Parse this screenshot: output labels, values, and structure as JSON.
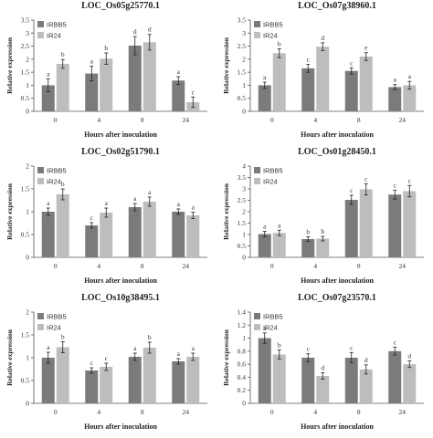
{
  "chart_data": [
    {
      "type": "bar",
      "title": "LOC_Os05g25770.1",
      "xlabel": "Hours after inoculation",
      "ylabel": "Relative expression",
      "categories": [
        "0",
        "4",
        "8",
        "24"
      ],
      "ylim": [
        0,
        3.5
      ],
      "yticks": [
        "0",
        "0.5",
        "1",
        "1.5",
        "2",
        "2.5",
        "3",
        "3.5"
      ],
      "legend_position": "top-left",
      "series": [
        {
          "name": "IRBB5",
          "color": "#7b7b7b",
          "values": [
            1.0,
            1.45,
            2.52,
            1.18
          ],
          "errors": [
            0.25,
            0.28,
            0.35,
            0.15
          ],
          "labels": [
            "a",
            "a",
            "d",
            "a"
          ]
        },
        {
          "name": "IR24",
          "color": "#bdbdbd",
          "values": [
            1.82,
            2.02,
            2.65,
            0.35
          ],
          "errors": [
            0.17,
            0.22,
            0.3,
            0.2
          ],
          "labels": [
            "b",
            "b",
            "d",
            "c"
          ]
        }
      ]
    },
    {
      "type": "bar",
      "title": "LOC_Os07g38960.1",
      "xlabel": "Hours after inoculation",
      "ylabel": "Relative expression",
      "categories": [
        "0",
        "4",
        "8",
        "24"
      ],
      "ylim": [
        0,
        3.5
      ],
      "yticks": [
        "0",
        "0.5",
        "1",
        "1.5",
        "2",
        "2.5",
        "3",
        "3.5"
      ],
      "legend_position": "top-left",
      "series": [
        {
          "name": "IRBB5",
          "color": "#7b7b7b",
          "values": [
            1.0,
            1.65,
            1.55,
            0.93
          ],
          "errors": [
            0.12,
            0.15,
            0.12,
            0.1
          ],
          "labels": [
            "a",
            "c",
            "c",
            "a"
          ]
        },
        {
          "name": "IR24",
          "color": "#bdbdbd",
          "values": [
            2.23,
            2.48,
            2.1,
            1.0
          ],
          "errors": [
            0.17,
            0.15,
            0.15,
            0.15
          ],
          "labels": [
            "b",
            "d",
            "e",
            "a"
          ]
        }
      ]
    },
    {
      "type": "bar",
      "title": "LOC_Os02g51790.1",
      "xlabel": "Hours after inoculation",
      "ylabel": "Relative expression",
      "categories": [
        "0",
        "4",
        "8",
        "24"
      ],
      "ylim": [
        0,
        2
      ],
      "yticks": [
        "0",
        "0.5",
        "1",
        "1.5",
        "2"
      ],
      "legend_position": "top-left",
      "series": [
        {
          "name": "IRBB5",
          "color": "#7b7b7b",
          "values": [
            1.0,
            0.7,
            1.1,
            1.0
          ],
          "errors": [
            0.08,
            0.06,
            0.08,
            0.06
          ],
          "labels": [
            "a",
            "c",
            "a",
            "a"
          ]
        },
        {
          "name": "IR24",
          "color": "#bdbdbd",
          "values": [
            1.38,
            0.98,
            1.22,
            0.92
          ],
          "errors": [
            0.12,
            0.1,
            0.1,
            0.07
          ],
          "labels": [
            "b",
            "a",
            "a",
            "a"
          ]
        }
      ]
    },
    {
      "type": "bar",
      "title": "LOC_Os01g28450.1",
      "xlabel": "Hours after inoculation",
      "ylabel": "Relative expression",
      "categories": [
        "0",
        "4",
        "8",
        "24"
      ],
      "ylim": [
        0,
        4
      ],
      "yticks": [
        "0",
        "0.5",
        "1",
        "1.5",
        "2",
        "2.5",
        "3",
        "3.5",
        "4"
      ],
      "legend_position": "top-left",
      "series": [
        {
          "name": "IRBB5",
          "color": "#7b7b7b",
          "values": [
            1.02,
            0.8,
            2.52,
            2.75
          ],
          "errors": [
            0.12,
            0.1,
            0.2,
            0.2
          ],
          "labels": [
            "a",
            "b",
            "c",
            "c"
          ]
        },
        {
          "name": "IR24",
          "color": "#bdbdbd",
          "values": [
            1.07,
            0.82,
            2.98,
            2.9
          ],
          "errors": [
            0.12,
            0.1,
            0.25,
            0.25
          ],
          "labels": [
            "a",
            "b",
            "c",
            "c"
          ]
        }
      ]
    },
    {
      "type": "bar",
      "title": "LOC_Os10g38495.1",
      "xlabel": "Hours after inoculation",
      "ylabel": "Relative expression",
      "categories": [
        "0",
        "4",
        "8",
        "24"
      ],
      "ylim": [
        0,
        2
      ],
      "yticks": [
        "0",
        "0.5",
        "1",
        "1.5",
        "2"
      ],
      "legend_position": "top-left",
      "series": [
        {
          "name": "IRBB5",
          "color": "#7b7b7b",
          "values": [
            1.0,
            0.72,
            1.02,
            0.92
          ],
          "errors": [
            0.12,
            0.06,
            0.08,
            0.06
          ],
          "labels": [
            "a",
            "c",
            "a",
            "a"
          ]
        },
        {
          "name": "IR24",
          "color": "#bdbdbd",
          "values": [
            1.23,
            0.8,
            1.22,
            1.02
          ],
          "errors": [
            0.12,
            0.08,
            0.12,
            0.08
          ],
          "labels": [
            "b",
            "c",
            "b",
            "a"
          ]
        }
      ]
    },
    {
      "type": "bar",
      "title": "LOC_Os07g23570.1",
      "xlabel": "Hours after inoculation",
      "ylabel": "Relative expression",
      "categories": [
        "0",
        "4",
        "8",
        "24"
      ],
      "ylim": [
        0,
        1.4
      ],
      "yticks": [
        "0",
        "0.2",
        "0.4",
        "0.6",
        "0.8",
        "1",
        "1.2",
        "1.4"
      ],
      "legend_position": "top-left",
      "series": [
        {
          "name": "IRBB5",
          "color": "#7b7b7b",
          "values": [
            1.0,
            0.7,
            0.7,
            0.8
          ],
          "errors": [
            0.08,
            0.06,
            0.08,
            0.06
          ],
          "labels": [
            "a",
            "c",
            "c",
            "c"
          ]
        },
        {
          "name": "IR24",
          "color": "#bdbdbd",
          "values": [
            0.75,
            0.42,
            0.52,
            0.6
          ],
          "errors": [
            0.07,
            0.05,
            0.07,
            0.05
          ],
          "labels": [
            "b",
            "d",
            "d",
            "d"
          ]
        }
      ]
    }
  ]
}
